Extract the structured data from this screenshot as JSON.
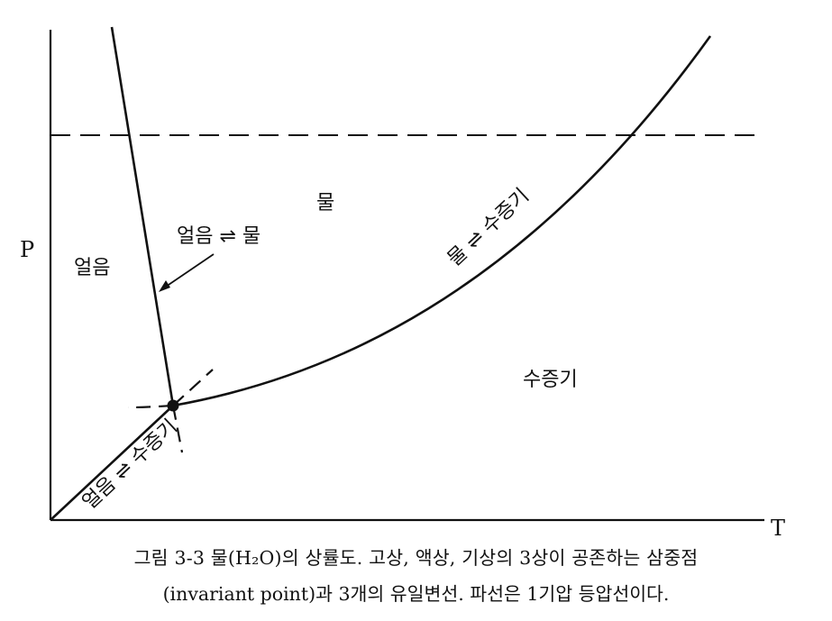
{
  "axes": {
    "y_label": "P",
    "x_label": "T"
  },
  "regions": {
    "ice": "얼음",
    "water": "물",
    "vapor": "수증기"
  },
  "boundaries": {
    "melting": "얼음 ⇌ 물",
    "vaporization": "물 ⇌ 수증기",
    "sublimation": "얼음 ⇌ 수증기"
  },
  "caption": {
    "line1": "그림 3-3  물(H₂O)의  상률도.  고상,  액상,  기상의  3상이  공존하는  삼중점",
    "line2": "(invariant point)과  3개의  유일변선.  파선은  1기압  등압선이다."
  },
  "colors": {
    "ink": "#111111",
    "background": "#ffffff"
  }
}
